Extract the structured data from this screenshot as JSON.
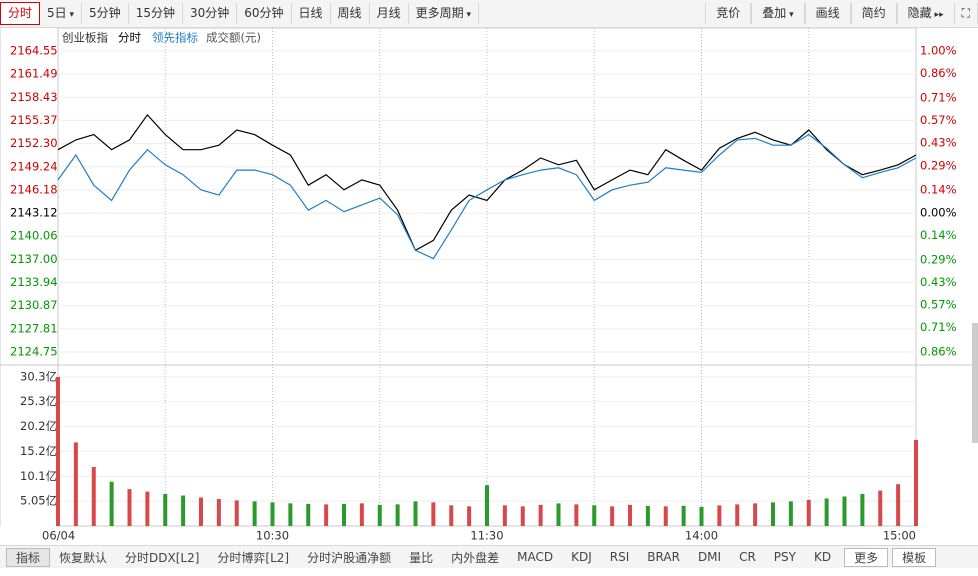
{
  "toolbar": {
    "left": [
      "分时",
      "5日",
      "5分钟",
      "15分钟",
      "30分钟",
      "60分钟",
      "日线",
      "周线",
      "月线",
      "更多周期"
    ],
    "right": [
      "竞价",
      "叠加",
      "画线",
      "简约",
      "隐藏"
    ]
  },
  "tabs": [
    "指标",
    "恢复默认",
    "分时DDX[L2]",
    "分时博弈[L2]",
    "分时沪股通净额",
    "量比",
    "内外盘差",
    "MACD",
    "KDJ",
    "RSI",
    "BRAR",
    "DMI",
    "CR",
    "PSY",
    "KD",
    "更多",
    "模板"
  ],
  "chart_data": [
    {
      "type": "line",
      "title": "创业板指",
      "x": [
        0,
        5,
        10,
        15,
        20,
        25,
        30,
        35,
        40,
        45,
        50,
        55,
        60,
        65,
        70,
        75,
        80,
        85,
        90,
        95,
        100,
        105,
        110,
        115,
        120,
        125,
        130,
        135,
        140,
        145,
        150,
        155,
        160,
        165,
        170,
        175,
        180,
        185,
        190,
        195,
        200,
        205,
        210,
        215,
        220,
        225,
        230,
        235,
        240
      ],
      "xlim": [
        0,
        240
      ],
      "xticks": [
        {
          "value": 0,
          "label": "06/04"
        },
        {
          "value": 60,
          "label": "10:30"
        },
        {
          "value": 120,
          "label": "11:30"
        },
        {
          "value": 180,
          "label": "14:00"
        },
        {
          "value": 240,
          "label": "15:00"
        }
      ],
      "series": [
        {
          "name": "分时",
          "color": "#000000",
          "values": [
            2151.5,
            2152.8,
            2153.5,
            2151.5,
            2152.8,
            2156.1,
            2153.5,
            2151.5,
            2151.5,
            2152.1,
            2154.1,
            2153.5,
            2152.1,
            2150.8,
            2146.8,
            2148.2,
            2146.2,
            2147.5,
            2146.8,
            2143.5,
            2138.2,
            2139.5,
            2143.5,
            2145.5,
            2144.8,
            2147.5,
            2148.8,
            2150.4,
            2149.5,
            2150.1,
            2146.2,
            2147.5,
            2148.8,
            2148.2,
            2151.5,
            2150.1,
            2148.8,
            2151.7,
            2153.0,
            2153.8,
            2152.8,
            2152.1,
            2154.1,
            2151.5,
            2149.5,
            2148.2,
            2148.8,
            2149.5,
            2150.8
          ]
        },
        {
          "name": "领先指标",
          "color": "#1f7fc4",
          "values": [
            2147.5,
            2150.8,
            2146.8,
            2144.8,
            2148.8,
            2151.5,
            2149.5,
            2148.2,
            2146.2,
            2145.5,
            2148.8,
            2148.8,
            2148.2,
            2146.8,
            2143.5,
            2144.8,
            2143.3,
            2144.2,
            2145.1,
            2142.9,
            2138.2,
            2137.1,
            2140.9,
            2144.8,
            2146.2,
            2147.5,
            2148.2,
            2148.8,
            2149.1,
            2148.2,
            2144.8,
            2146.2,
            2146.8,
            2147.2,
            2149.1,
            2148.8,
            2148.5,
            2150.8,
            2152.8,
            2153.0,
            2152.1,
            2152.1,
            2153.5,
            2151.7,
            2149.5,
            2147.8,
            2148.5,
            2149.1,
            2150.4
          ]
        }
      ],
      "ylim": [
        2124.75,
        2164.55
      ],
      "yticks": [
        2164.55,
        2161.49,
        2158.43,
        2155.37,
        {
          "value": 2152.3,
          "label": "2152.30"
        },
        2149.24,
        2146.18,
        2143.12,
        2140.06,
        {
          "value": 2137,
          "label": "2137.00"
        },
        2133.94,
        2130.87,
        2127.81,
        2124.75
      ],
      "y2lim": [
        -0.86,
        1.0
      ],
      "y2ticks": [
        {
          "value": 1.0,
          "label": "1.00%"
        },
        {
          "value": 0.86,
          "label": "0.86%"
        },
        {
          "value": 0.71,
          "label": "0.71%"
        },
        {
          "value": 0.57,
          "label": "0.57%"
        },
        {
          "value": 0.43,
          "label": "0.43%"
        },
        {
          "value": 0.29,
          "label": "0.29%"
        },
        {
          "value": 0.14,
          "label": "0.14%"
        },
        {
          "value": 0,
          "label": "0.00%"
        },
        {
          "value": -0.14,
          "label": "0.14%"
        },
        {
          "value": -0.29,
          "label": "0.29%"
        },
        {
          "value": -0.43,
          "label": "0.43%"
        },
        {
          "value": -0.57,
          "label": "0.57%"
        },
        {
          "value": -0.71,
          "label": "0.71%"
        },
        {
          "value": -0.86,
          "label": "0.86%"
        }
      ],
      "up_color": "#e00000",
      "down_color": "#009900"
    },
    {
      "type": "bar",
      "title": "成交额(元)",
      "values": [
        30.3,
        17.0,
        12.0,
        9.0,
        7.5,
        7.0,
        6.5,
        6.2,
        5.8,
        5.5,
        5.2,
        5.0,
        4.8,
        4.6,
        4.5,
        4.4,
        4.5,
        4.6,
        4.3,
        4.4,
        5.0,
        4.8,
        4.2,
        4.0,
        8.3,
        4.2,
        4.0,
        4.3,
        4.6,
        4.4,
        4.2,
        4.0,
        4.3,
        4.1,
        4.0,
        4.1,
        3.9,
        4.2,
        4.4,
        4.6,
        4.8,
        5.0,
        5.3,
        5.6,
        6.0,
        6.5,
        7.2,
        8.5,
        17.5
      ],
      "ylim": [
        0,
        30.3
      ],
      "yticks": [
        {
          "value": 30.3,
          "label": "30.3亿"
        },
        {
          "value": 25.3,
          "label": "25.3亿"
        },
        {
          "value": 20.2,
          "label": "20.2亿"
        },
        {
          "value": 15.2,
          "label": "15.2亿"
        },
        {
          "value": 10.1,
          "label": "10.1亿"
        },
        {
          "value": 5.05,
          "label": "5.05亿"
        }
      ],
      "up_color": "#d84848",
      "down_color": "#2a9a2a"
    }
  ]
}
